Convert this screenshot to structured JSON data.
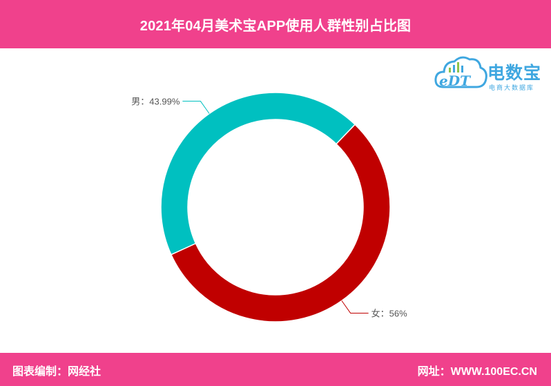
{
  "header": {
    "title": "2021年04月美术宝APP使用人群性别占比图"
  },
  "footer": {
    "left_text": "图表编制：网经社",
    "right_text": "网址：WWW.100EC.CN"
  },
  "logo": {
    "name": "电数宝",
    "subtitle": "电商大数据库",
    "mark": "eDT"
  },
  "colors": {
    "header_bg": "#f0418c",
    "male": "#00c0c0",
    "female": "#c00000",
    "label_text": "#555555"
  },
  "chart_data": {
    "type": "pie",
    "style": "donut",
    "slices": [
      {
        "name": "男",
        "value": 43.99,
        "label": "男：43.99%",
        "color": "#00c0c0"
      },
      {
        "name": "女",
        "value": 56,
        "label": "女：56%",
        "color": "#c00000"
      }
    ]
  }
}
